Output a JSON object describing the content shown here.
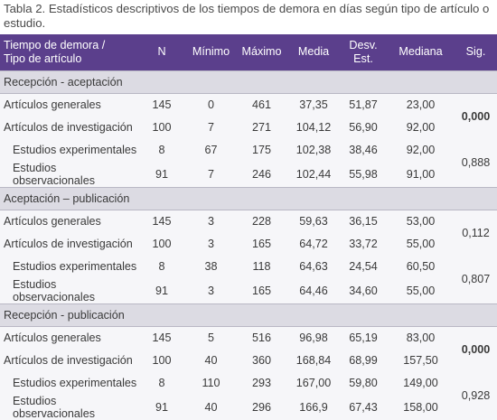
{
  "caption": "Tabla 2. Estadísticos descriptivos de los tiempos de demora en días según tipo de artículo o estudio.",
  "headers": {
    "first_line1": "Tiempo de demora /",
    "first_line2": "Tipo de artículo",
    "n": "N",
    "minimo": "Mínimo",
    "maximo": "Máximo",
    "media": "Media",
    "desv_line1": "Desv.",
    "desv_line2": "Est.",
    "mediana": "Mediana",
    "sig": "Sig."
  },
  "sections": [
    {
      "title": "Recepción - aceptación",
      "rows": [
        {
          "label": "Artículos generales",
          "n": "145",
          "min": "0",
          "max": "461",
          "media": "37,35",
          "desv": "51,87",
          "mediana": "23,00"
        },
        {
          "label": "Artículos de investigación",
          "n": "100",
          "min": "7",
          "max": "271",
          "media": "104,12",
          "desv": "56,90",
          "mediana": "92,00"
        },
        {
          "label": "Estudios experimentales",
          "n": "8",
          "min": "67",
          "max": "175",
          "media": "102,38",
          "desv": "38,46",
          "mediana": "92,00"
        },
        {
          "label": "Estudios observacionales",
          "n": "91",
          "min": "7",
          "max": "246",
          "media": "102,44",
          "desv": "55,98",
          "mediana": "91,00"
        }
      ],
      "sig_a": "0,000",
      "sig_b": "0,888"
    },
    {
      "title": "Aceptación – publicación",
      "rows": [
        {
          "label": "Artículos generales",
          "n": "145",
          "min": "3",
          "max": "228",
          "media": "59,63",
          "desv": "36,15",
          "mediana": "53,00"
        },
        {
          "label": "Artículos de investigación",
          "n": "100",
          "min": "3",
          "max": "165",
          "media": "64,72",
          "desv": "33,72",
          "mediana": "55,00"
        },
        {
          "label": "Estudios experimentales",
          "n": "8",
          "min": "38",
          "max": "118",
          "media": "64,63",
          "desv": "24,54",
          "mediana": "60,50"
        },
        {
          "label": "Estudios observacionales",
          "n": "91",
          "min": "3",
          "max": "165",
          "media": "64,46",
          "desv": "34,60",
          "mediana": "55,00"
        }
      ],
      "sig_a": "0,112",
      "sig_b": "0,807"
    },
    {
      "title": "Recepción - publicación",
      "rows": [
        {
          "label": "Artículos generales",
          "n": "145",
          "min": "5",
          "max": "516",
          "media": "96,98",
          "desv": "65,19",
          "mediana": "83,00"
        },
        {
          "label": "Artículos de investigación",
          "n": "100",
          "min": "40",
          "max": "360",
          "media": "168,84",
          "desv": "68,99",
          "mediana": "157,50"
        },
        {
          "label": "Estudios experimentales",
          "n": "8",
          "min": "110",
          "max": "293",
          "media": "167,00",
          "desv": "59,80",
          "mediana": "149,00"
        },
        {
          "label": "Estudios observacionales",
          "n": "91",
          "min": "40",
          "max": "296",
          "media": "166,9",
          "desv": "67,43",
          "mediana": "158,00"
        }
      ],
      "sig_a": "0,000",
      "sig_b": "0,928"
    }
  ],
  "colors": {
    "header_bg": "#5b3f8c",
    "section_bg": "#dcdbe3",
    "row_bg": "#f6f6f9"
  }
}
